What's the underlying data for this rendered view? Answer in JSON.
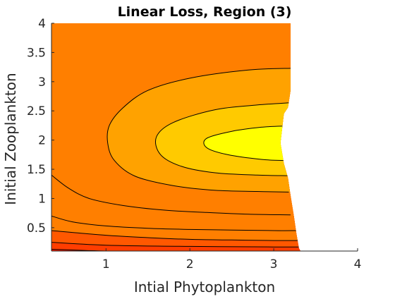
{
  "chart_data": {
    "type": "contour",
    "title": "Linear Loss, Region (3)",
    "xlabel": "Intial Phytoplankton",
    "ylabel": "Initial Zooplankton",
    "xlim": [
      0.35,
      4
    ],
    "ylim": [
      0.1,
      4
    ],
    "x_ticks": [
      1,
      2,
      3,
      4
    ],
    "x_tick_labels": [
      "1",
      "2",
      "3",
      "4"
    ],
    "y_ticks": [
      0.5,
      1,
      1.5,
      2,
      2.5,
      3,
      3.5,
      4
    ],
    "y_tick_labels": [
      "0.5",
      "1",
      "1.5",
      "2",
      "2.5",
      "3",
      "3.5",
      "4"
    ],
    "grid": false,
    "colormap": "autumn",
    "band_colors": [
      "#ff1a00",
      "#ff3d00",
      "#ff5800",
      "#ff7f00",
      "#ffa200",
      "#ffca00",
      "#ffff00"
    ],
    "contour_levels": [
      {
        "points": [
          [
            0.35,
            0.13
          ],
          [
            1.0,
            0.1
          ],
          [
            2.0,
            0.09
          ],
          [
            3.3,
            0.09
          ]
        ]
      },
      {
        "points": [
          [
            0.35,
            0.25
          ],
          [
            1.0,
            0.2
          ],
          [
            2.0,
            0.18
          ],
          [
            3.0,
            0.17
          ],
          [
            3.3,
            0.17
          ]
        ]
      },
      {
        "points": [
          [
            0.35,
            0.45
          ],
          [
            1.0,
            0.37
          ],
          [
            1.5,
            0.33
          ],
          [
            2.0,
            0.3
          ],
          [
            2.5,
            0.29
          ],
          [
            3.0,
            0.28
          ],
          [
            3.3,
            0.28
          ]
        ]
      },
      {
        "points": [
          [
            0.35,
            0.7
          ],
          [
            0.6,
            0.6
          ],
          [
            1.0,
            0.53
          ],
          [
            1.5,
            0.49
          ],
          [
            2.0,
            0.47
          ],
          [
            2.5,
            0.46
          ],
          [
            3.0,
            0.45
          ],
          [
            3.3,
            0.45
          ]
        ]
      },
      {
        "points": [
          [
            0.35,
            1.4
          ],
          [
            0.55,
            1.18
          ],
          [
            0.8,
            1.0
          ],
          [
            1.2,
            0.88
          ],
          [
            1.7,
            0.8
          ],
          [
            2.2,
            0.76
          ],
          [
            2.7,
            0.73
          ],
          [
            3.2,
            0.72
          ]
        ]
      },
      {
        "points": [
          [
            3.22,
            3.23
          ],
          [
            2.7,
            3.2
          ],
          [
            2.0,
            3.06
          ],
          [
            1.5,
            2.85
          ],
          [
            1.2,
            2.55
          ],
          [
            1.04,
            2.25
          ],
          [
            1.02,
            1.95
          ],
          [
            1.1,
            1.65
          ],
          [
            1.35,
            1.38
          ],
          [
            1.8,
            1.22
          ],
          [
            2.3,
            1.14
          ],
          [
            2.8,
            1.12
          ],
          [
            3.18,
            1.11
          ]
        ]
      },
      {
        "points": [
          [
            3.2,
            2.64
          ],
          [
            2.8,
            2.6
          ],
          [
            2.3,
            2.52
          ],
          [
            1.8,
            2.3
          ],
          [
            1.6,
            2.05
          ],
          [
            1.65,
            1.75
          ],
          [
            1.9,
            1.55
          ],
          [
            2.3,
            1.44
          ],
          [
            2.8,
            1.4
          ],
          [
            3.18,
            1.39
          ]
        ]
      },
      {
        "points": [
          [
            3.13,
            2.24
          ],
          [
            2.85,
            2.22
          ],
          [
            2.5,
            2.15
          ],
          [
            2.2,
            2.03
          ],
          [
            2.2,
            1.87
          ],
          [
            2.45,
            1.75
          ],
          [
            2.85,
            1.67
          ],
          [
            3.13,
            1.65
          ]
        ]
      }
    ],
    "domain_right_edge": [
      [
        3.2,
        4.0
      ],
      [
        3.2,
        2.85
      ],
      [
        3.17,
        2.56
      ],
      [
        3.12,
        2.45
      ],
      [
        3.1,
        2.2
      ],
      [
        3.08,
        1.95
      ],
      [
        3.12,
        1.6
      ],
      [
        3.17,
        1.35
      ],
      [
        3.2,
        1.05
      ],
      [
        3.24,
        0.7
      ],
      [
        3.27,
        0.4
      ],
      [
        3.3,
        0.15
      ],
      [
        3.32,
        0.1
      ]
    ]
  }
}
